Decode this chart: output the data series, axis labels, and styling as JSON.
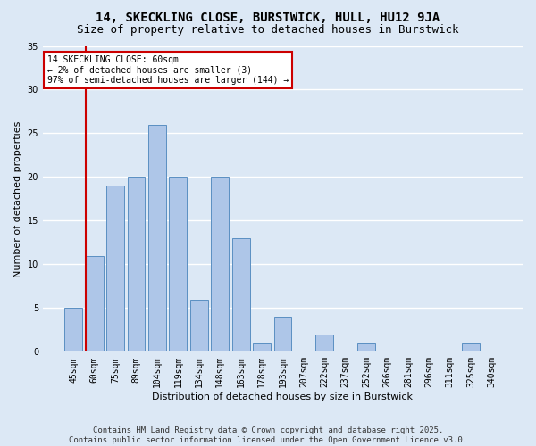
{
  "title": "14, SKECKLING CLOSE, BURSTWICK, HULL, HU12 9JA",
  "subtitle": "Size of property relative to detached houses in Burstwick",
  "xlabel": "Distribution of detached houses by size in Burstwick",
  "ylabel": "Number of detached properties",
  "categories": [
    "45sqm",
    "60sqm",
    "75sqm",
    "89sqm",
    "104sqm",
    "119sqm",
    "134sqm",
    "148sqm",
    "163sqm",
    "178sqm",
    "193sqm",
    "207sqm",
    "222sqm",
    "237sqm",
    "252sqm",
    "266sqm",
    "281sqm",
    "296sqm",
    "311sqm",
    "325sqm",
    "340sqm"
  ],
  "values": [
    5,
    11,
    19,
    20,
    26,
    20,
    6,
    20,
    13,
    1,
    4,
    0,
    2,
    0,
    1,
    0,
    0,
    0,
    0,
    1,
    0
  ],
  "bar_color": "#aec6e8",
  "bar_edge_color": "#5a8fc2",
  "highlight_index": 1,
  "highlight_color": "#cc0000",
  "ylim": [
    0,
    35
  ],
  "yticks": [
    0,
    5,
    10,
    15,
    20,
    25,
    30,
    35
  ],
  "annotation_text": "14 SKECKLING CLOSE: 60sqm\n← 2% of detached houses are smaller (3)\n97% of semi-detached houses are larger (144) →",
  "annotation_box_color": "#ffffff",
  "annotation_box_edge": "#cc0000",
  "footer_line1": "Contains HM Land Registry data © Crown copyright and database right 2025.",
  "footer_line2": "Contains public sector information licensed under the Open Government Licence v3.0.",
  "bg_color": "#dce8f5",
  "plot_bg_color": "#dce8f5",
  "grid_color": "#ffffff",
  "title_fontsize": 10,
  "subtitle_fontsize": 9,
  "footer_fontsize": 6.5,
  "axis_label_fontsize": 8,
  "tick_fontsize": 7,
  "annotation_fontsize": 7
}
